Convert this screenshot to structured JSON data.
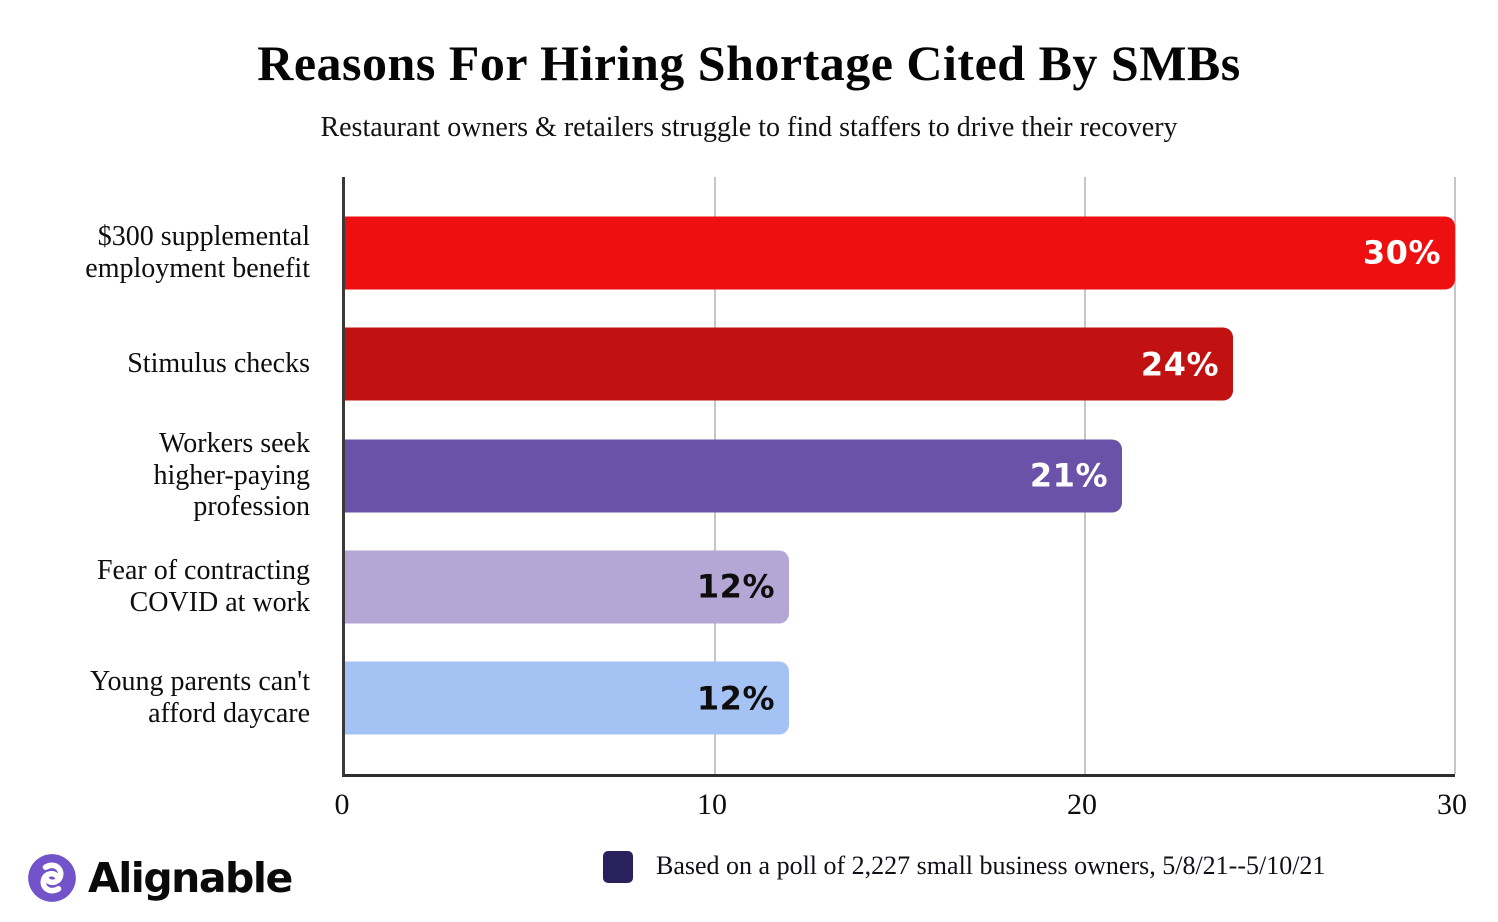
{
  "header": {
    "title": "Reasons For Hiring Shortage Cited By SMBs",
    "subtitle": "Restaurant owners & retailers struggle to find staffers to drive their recovery"
  },
  "chart_data": {
    "type": "bar",
    "orientation": "horizontal",
    "title": "Reasons For Hiring Shortage Cited By SMBs",
    "subtitle": "Restaurant owners & retailers struggle to find staffers to drive their recovery",
    "categories": [
      "$300 supplemental\nemployment benefit",
      "Stimulus checks",
      "Workers seek\nhigher-paying\nprofession",
      "Fear of contracting\nCOVID at work",
      "Young parents can't\nafford daycare"
    ],
    "values": [
      30,
      24,
      21,
      12,
      12
    ],
    "value_labels": [
      "30%",
      "24%",
      "21%",
      "12%",
      "12%"
    ],
    "bar_colors": [
      "#ee1010",
      "#c21111",
      "#6a52a8",
      "#b4a7d6",
      "#a4c2f4"
    ],
    "value_label_colors": [
      "#ffffff",
      "#ffffff",
      "#ffffff",
      "#0e0e0e",
      "#0e0e0e"
    ],
    "xlabel": "",
    "ylabel": "",
    "xlim": [
      0,
      30
    ],
    "xticks": [
      0,
      10,
      20,
      30
    ],
    "grid": "vertical gridlines at 10, 20, 30 (light gray)",
    "legend_position": "none"
  },
  "footer": {
    "logo_icon": "alignable-swirl-icon",
    "logo_color": "#7253c9",
    "logo_text": "Alignable",
    "legend_swatch_color": "#28215b",
    "note": "Based on a poll of 2,227 small business owners, 5/8/21--5/10/21"
  }
}
